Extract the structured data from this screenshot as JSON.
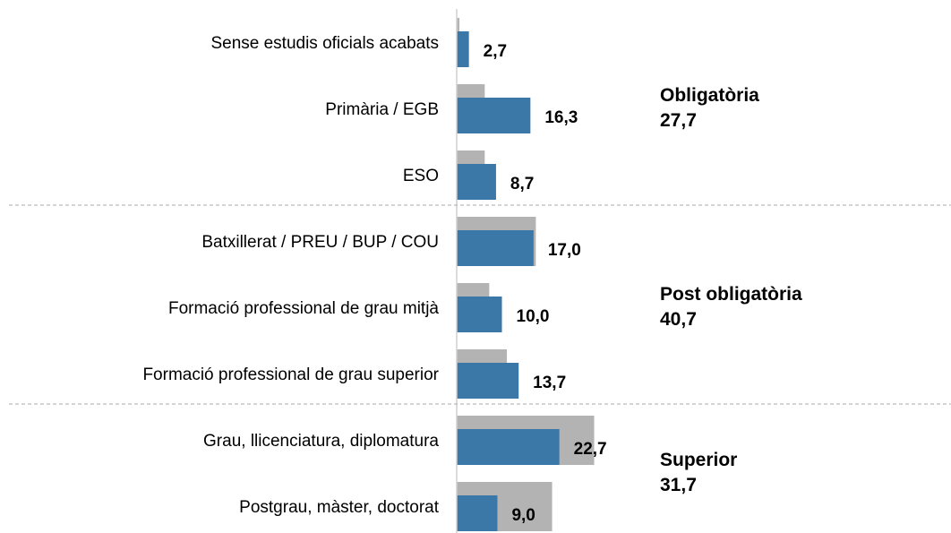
{
  "chart_data": {
    "type": "bar",
    "orientation": "horizontal",
    "categories": [
      "Sense estudis oficials acabats",
      "Primària / EGB",
      "ESO",
      "Batxillerat / PREU / BUP / COU",
      "Formació professional de grau mitjà",
      "Formació professional de grau superior",
      "Grau, llicenciatura, diplomatura",
      "Postgrau, màster, doctorat"
    ],
    "series": [
      {
        "color": "#b3b3b3",
        "values": [
          0.6,
          6.2,
          6.2,
          17.5,
          7.2,
          11.1,
          30.4,
          21.1
        ]
      },
      {
        "color": "#3b77a7",
        "values": [
          2.7,
          16.3,
          8.7,
          17.0,
          10.0,
          13.7,
          22.7,
          9.0
        ],
        "value_labels": [
          "2,7",
          "16,3",
          "8,7",
          "17,0",
          "10,0",
          "13,7",
          "22,7",
          "9,0"
        ]
      }
    ],
    "groups": [
      {
        "name": "Obligatòria",
        "total": "27,7",
        "first": 0,
        "last": 2
      },
      {
        "name": "Post obligatòria",
        "total": "40,7",
        "first": 3,
        "last": 5
      },
      {
        "name": "Superior",
        "total": "31,7",
        "first": 6,
        "last": 7
      }
    ]
  }
}
